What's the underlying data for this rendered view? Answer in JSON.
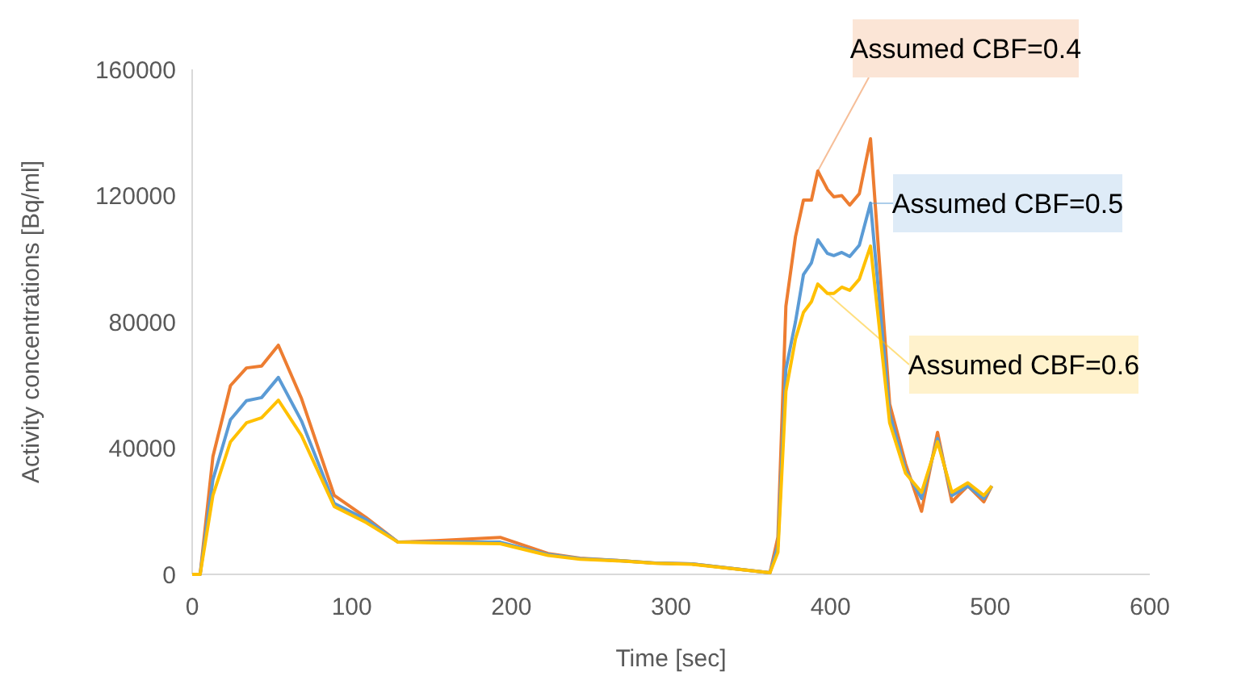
{
  "chart_data": {
    "type": "line",
    "xlabel": "Time [sec]",
    "ylabel": "Activity concentrations [Bq/ml]",
    "x": [
      0,
      5,
      13,
      24,
      34,
      43.5,
      54,
      68.5,
      89,
      109,
      129,
      153,
      193,
      223,
      243,
      270,
      290,
      313,
      362,
      367,
      372,
      378,
      383,
      388,
      392,
      398,
      402,
      407,
      412,
      418,
      425,
      437,
      447,
      457,
      467,
      476,
      486,
      496,
      501
    ],
    "series": [
      {
        "name": "Assumed CBF=0.4",
        "color": "#ed7d31",
        "values": [
          0,
          0,
          37300,
          59800,
          65400,
          66000,
          72600,
          55700,
          25000,
          18000,
          10200,
          10700,
          11700,
          6600,
          5100,
          4300,
          3600,
          3300,
          500,
          11800,
          85000,
          107000,
          118600,
          118600,
          127800,
          122000,
          119600,
          120000,
          117000,
          120600,
          138000,
          54000,
          35000,
          20000,
          45000,
          23000,
          28000,
          23000,
          28000
        ]
      },
      {
        "name": "Assumed CBF=0.5",
        "color": "#5b9bd5",
        "values": [
          0,
          0,
          30000,
          49000,
          55000,
          56000,
          62400,
          48600,
          22500,
          17400,
          10200,
          10200,
          10200,
          6300,
          5000,
          4300,
          3600,
          3300,
          500,
          9000,
          65000,
          80000,
          95000,
          98700,
          106000,
          101700,
          101000,
          102000,
          100700,
          104300,
          117600,
          51000,
          33000,
          24000,
          43000,
          25000,
          28000,
          24000,
          28000
        ]
      },
      {
        "name": "Assumed CBF=0.6",
        "color": "#ffc000",
        "values": [
          0,
          0,
          25000,
          42000,
          48000,
          49600,
          55200,
          44000,
          21500,
          16400,
          10200,
          10000,
          9700,
          6000,
          4800,
          4200,
          3500,
          3200,
          500,
          7000,
          58000,
          74600,
          83000,
          86400,
          92000,
          89000,
          89000,
          91000,
          90000,
          93500,
          104000,
          48000,
          32000,
          26000,
          42000,
          26000,
          29000,
          25000,
          28000
        ]
      }
    ],
    "xlim": [
      0,
      600
    ],
    "xticks": [
      0,
      100,
      200,
      300,
      400,
      500,
      600
    ],
    "ylim": [
      0,
      160000
    ],
    "yticks": [
      0,
      40000,
      80000,
      120000,
      160000
    ],
    "grid": false,
    "marker": "none",
    "line_style": "solid"
  }
}
